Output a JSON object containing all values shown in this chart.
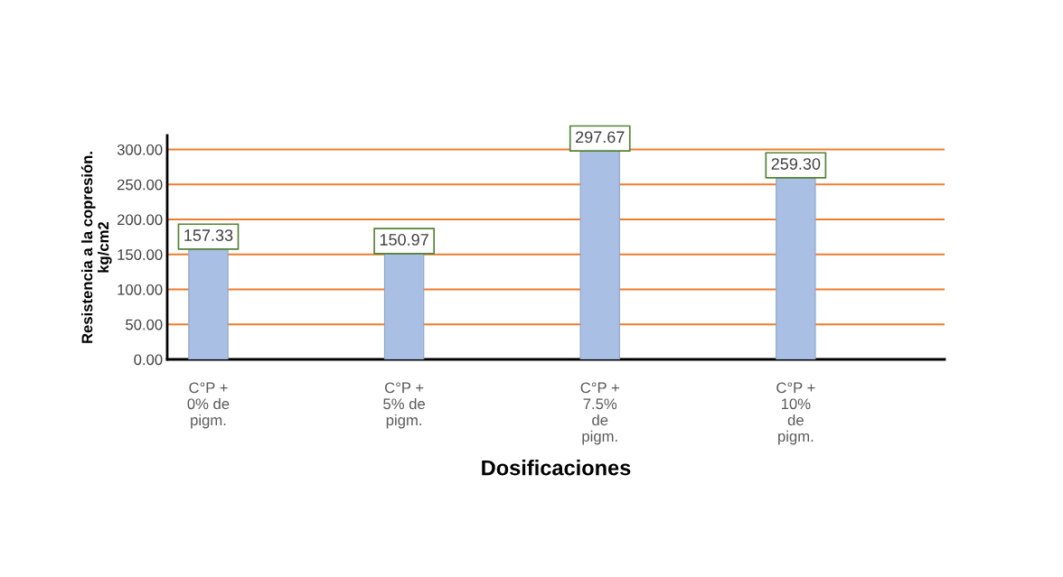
{
  "chart_data": {
    "type": "bar",
    "xlabel": "Dosificaciones",
    "ylabel": "Resistencia a la copresión.\nkg/cm2",
    "categories": [
      "C°P +\n0% de\npigm.",
      "C°P +\n5% de\npigm.",
      "C°P +\n7.5%\nde\npigm.",
      "C°P +\n10%\nde\npigm."
    ],
    "values": [
      157.33,
      150.97,
      297.67,
      259.3
    ],
    "color": "#a9bfe3",
    "value_labels": [
      "157.33",
      "150.97",
      "297.67",
      "259.30"
    ],
    "ylim": [
      0,
      320
    ],
    "yticks": [
      {
        "value": 0,
        "label": "0.00"
      },
      {
        "value": 50,
        "label": "50.00"
      },
      {
        "value": 100,
        "label": "100.00"
      },
      {
        "value": 150,
        "label": "150.00"
      },
      {
        "value": 200,
        "label": "200.00"
      },
      {
        "value": 250,
        "label": "250.00"
      },
      {
        "value": 300,
        "label": "300.00"
      }
    ],
    "grid": "y",
    "legend": false
  }
}
